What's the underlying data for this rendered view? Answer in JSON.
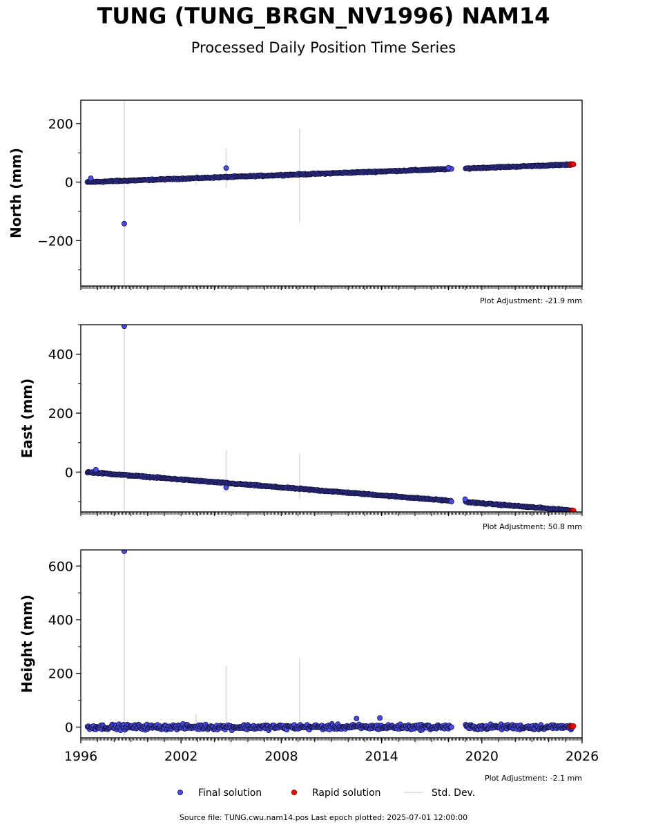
{
  "title": "TUNG (TUNG_BRGN_NV1996) NAM14",
  "subtitle": "Processed Daily Position Time Series",
  "footer": "Source file: TUNG.cwu.nam14.pos  Last epoch plotted: 2025-07-01 12:00:00",
  "colors": {
    "final": "#4b4bea",
    "final_edge": "#14143c",
    "rapid": "#e01010",
    "std_dev": "#d8d8d8"
  },
  "chart_data": [
    {
      "type": "scatter",
      "ylabel": "North (mm)",
      "xlim": [
        1996,
        2026
      ],
      "ylim": [
        -355,
        280
      ],
      "yticks": [
        200,
        0,
        -200
      ],
      "ytick_labels": [
        "200",
        "0",
        "−200"
      ],
      "adjustment": "Plot Adjustment: -21.9 mm",
      "final_series": {
        "start": 1996.4,
        "start_value": 0,
        "end": 2025.4,
        "end_value": 60,
        "gap": [
          2018.2,
          2019.0
        ],
        "scatter": 3
      },
      "rapid_series": {
        "start": 2025.3,
        "end": 2025.5,
        "value": 61
      },
      "outliers": [
        {
          "x": 1996.6,
          "y": 13
        },
        {
          "x": 1998.6,
          "y": -142
        },
        {
          "x": 2004.7,
          "y": 48
        },
        {
          "x": 2018.0,
          "y": 49
        }
      ],
      "std_dev_bars": [
        {
          "x": 1998.6,
          "low": -355,
          "high": 280
        },
        {
          "x": 2002.9,
          "low": -10,
          "high": 30
        },
        {
          "x": 2004.7,
          "low": -20,
          "high": 115
        },
        {
          "x": 2009.1,
          "low": -137,
          "high": 183
        }
      ]
    },
    {
      "type": "scatter",
      "ylabel": "East (mm)",
      "xlim": [
        1996,
        2026
      ],
      "ylim": [
        -135,
        500
      ],
      "yticks": [
        400,
        200,
        0
      ],
      "ytick_labels": [
        "400",
        "200",
        "0"
      ],
      "adjustment": "Plot Adjustment: 50.8 mm",
      "final_series": {
        "start": 1996.4,
        "start_value": 0,
        "end": 2025.4,
        "end_value": -130,
        "gap": [
          2018.2,
          2019.0
        ],
        "scatter": 3
      },
      "rapid_series": {
        "start": 2025.4,
        "end": 2025.5,
        "value": -131
      },
      "outliers": [
        {
          "x": 1998.6,
          "y": 495
        },
        {
          "x": 2004.7,
          "y": -52
        },
        {
          "x": 1996.9,
          "y": 8
        },
        {
          "x": 2019.0,
          "y": -92
        }
      ],
      "std_dev_bars": [
        {
          "x": 1998.6,
          "low": -135,
          "high": 500
        },
        {
          "x": 2004.7,
          "low": -70,
          "high": 75
        },
        {
          "x": 2009.1,
          "low": -90,
          "high": 62
        }
      ]
    },
    {
      "type": "scatter",
      "ylabel": "Height (mm)",
      "xlabel": "",
      "xlim": [
        1996,
        2026
      ],
      "ylim": [
        -40,
        660
      ],
      "yticks": [
        600,
        400,
        200,
        0
      ],
      "ytick_labels": [
        "600",
        "400",
        "200",
        "0"
      ],
      "xticks": [
        1996,
        2002,
        2008,
        2014,
        2020,
        2026
      ],
      "xtick_labels": [
        "1996",
        "2002",
        "2008",
        "2014",
        "2020",
        "2026"
      ],
      "adjustment": "Plot Adjustment: -2.1 mm",
      "final_series": {
        "start": 1996.4,
        "start_value": 0,
        "end": 2025.4,
        "end_value": 0,
        "gap": [
          2018.2,
          2019.0
        ],
        "scatter": 14
      },
      "rapid_series": {
        "start": 2025.3,
        "end": 2025.5,
        "value": 3
      },
      "outliers": [
        {
          "x": 1998.6,
          "y": 655
        },
        {
          "x": 2012.5,
          "y": 32
        },
        {
          "x": 2013.9,
          "y": 34
        }
      ],
      "std_dev_bars": [
        {
          "x": 1998.6,
          "low": -40,
          "high": 660
        },
        {
          "x": 2002.9,
          "low": -5,
          "high": 48
        },
        {
          "x": 2004.7,
          "low": -20,
          "high": 228
        },
        {
          "x": 2009.1,
          "low": -10,
          "high": 256
        }
      ]
    }
  ],
  "legend": {
    "final_label": "Final solution",
    "rapid_label": "Rapid solution",
    "std_label": "Std. Dev.",
    "placement": "bottom-center"
  }
}
